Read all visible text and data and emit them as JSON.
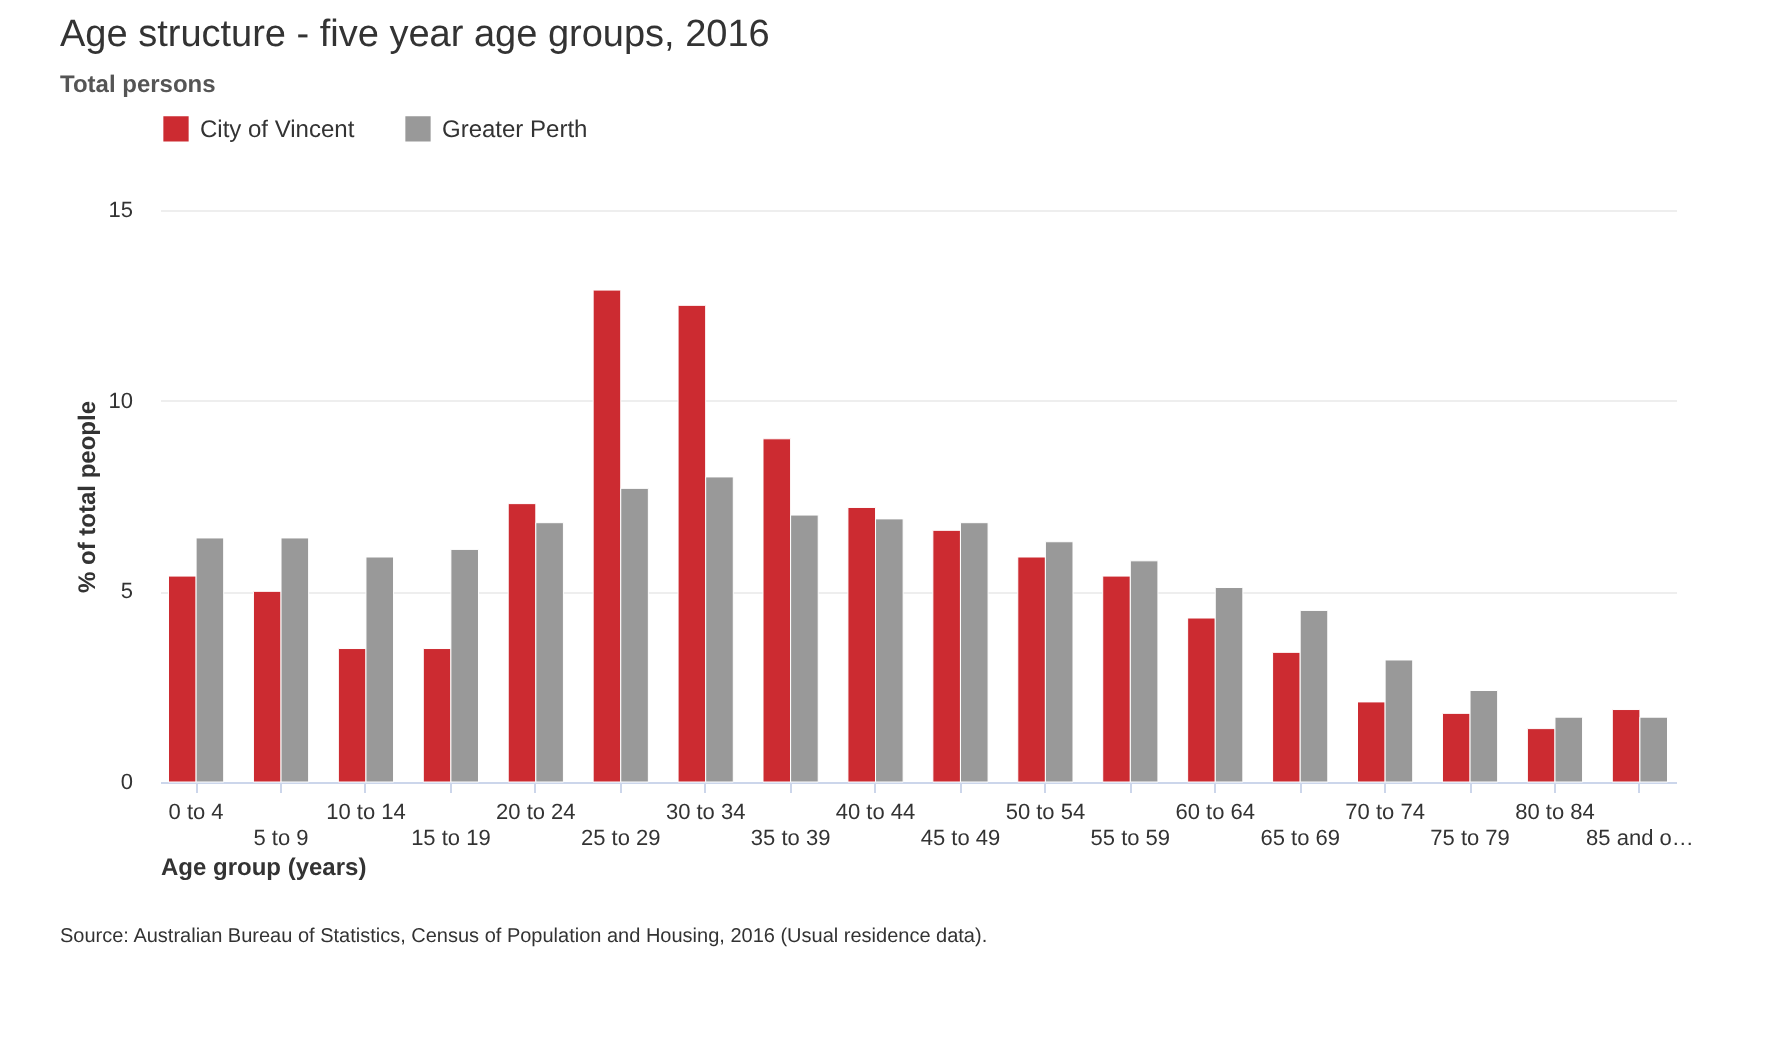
{
  "chart_data": {
    "type": "bar",
    "title": "Age structure - five year age groups, 2016",
    "subtitle": "Total persons",
    "xlabel": "Age group (years)",
    "ylabel": "% of total people",
    "categories": [
      "0 to 4",
      "5 to 9",
      "10 to 14",
      "15 to 19",
      "20 to 24",
      "25 to 29",
      "30 to 34",
      "35 to 39",
      "40 to 44",
      "45 to 49",
      "50 to 54",
      "55 to 59",
      "60 to 64",
      "65 to 69",
      "70 to 74",
      "75 to 79",
      "80 to 84",
      "85 and o…"
    ],
    "series": [
      {
        "name": "City of Vincent",
        "color": "#cc2b31",
        "values": [
          5.4,
          5.0,
          3.5,
          3.5,
          7.3,
          12.9,
          12.5,
          9.0,
          7.2,
          6.6,
          5.9,
          5.4,
          4.3,
          3.4,
          2.1,
          1.8,
          1.4,
          1.9
        ]
      },
      {
        "name": "Greater Perth",
        "color": "#999999",
        "values": [
          6.4,
          6.4,
          5.9,
          6.1,
          6.8,
          7.7,
          8.0,
          7.0,
          6.9,
          6.8,
          6.3,
          5.8,
          5.1,
          4.5,
          3.2,
          2.4,
          1.7,
          1.7
        ]
      }
    ],
    "ylim": [
      0,
      15
    ],
    "yticks": [
      0,
      5,
      10,
      15
    ],
    "grid": "y",
    "legend": "top left",
    "annotations": [
      "Source: Australian Bureau of Statistics, Census of Population and Housing, 2016 (Usual residence data)."
    ]
  }
}
